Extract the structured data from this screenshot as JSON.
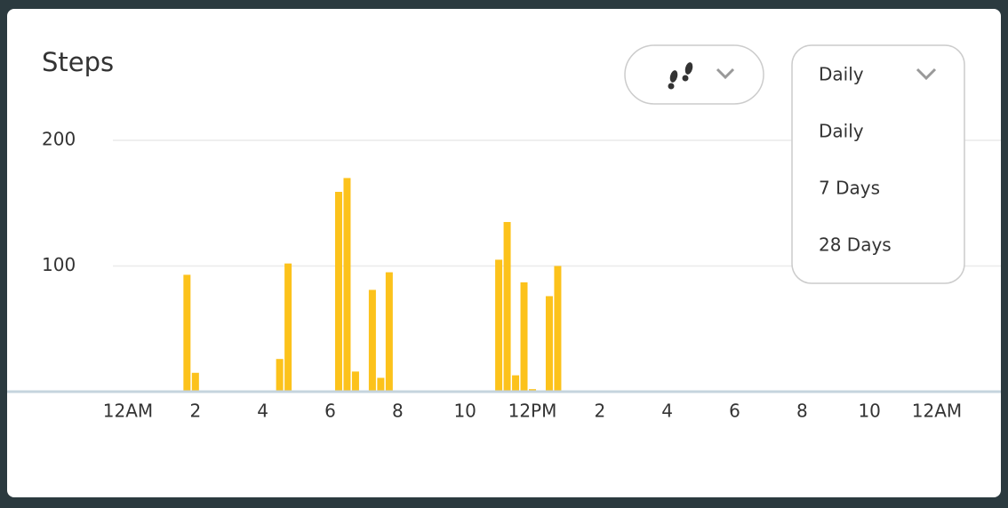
{
  "chart_data": {
    "type": "bar",
    "title": "Steps",
    "x": [
      1.75,
      2,
      4.5,
      4.75,
      6.25,
      6.5,
      6.75,
      7.25,
      7.5,
      7.75,
      11,
      11.25,
      11.5,
      11.75,
      12,
      12.5,
      12.75
    ],
    "values": [
      93,
      15,
      26,
      102,
      159,
      170,
      16,
      81,
      11,
      95,
      105,
      135,
      13,
      87,
      2,
      76,
      100
    ],
    "color": "#fcc21b",
    "xlim": [
      0,
      24
    ],
    "xticks": [
      {
        "value": 0,
        "label": "12AM"
      },
      2,
      4,
      6,
      8,
      10,
      {
        "value": 12,
        "label": "12PM"
      },
      {
        "value": 14,
        "label": "2"
      },
      {
        "value": 16,
        "label": "4"
      },
      {
        "value": 18,
        "label": "6"
      },
      {
        "value": 20,
        "label": "8"
      },
      {
        "value": 22,
        "label": "10"
      },
      {
        "value": 24,
        "label": "12AM"
      }
    ],
    "ylim": [
      0,
      200
    ],
    "yticks": [
      100,
      200
    ],
    "grid": true
  },
  "period_dropdown": {
    "selected": "Daily",
    "options": [
      "Daily",
      "7 Days",
      "28 Days"
    ]
  }
}
